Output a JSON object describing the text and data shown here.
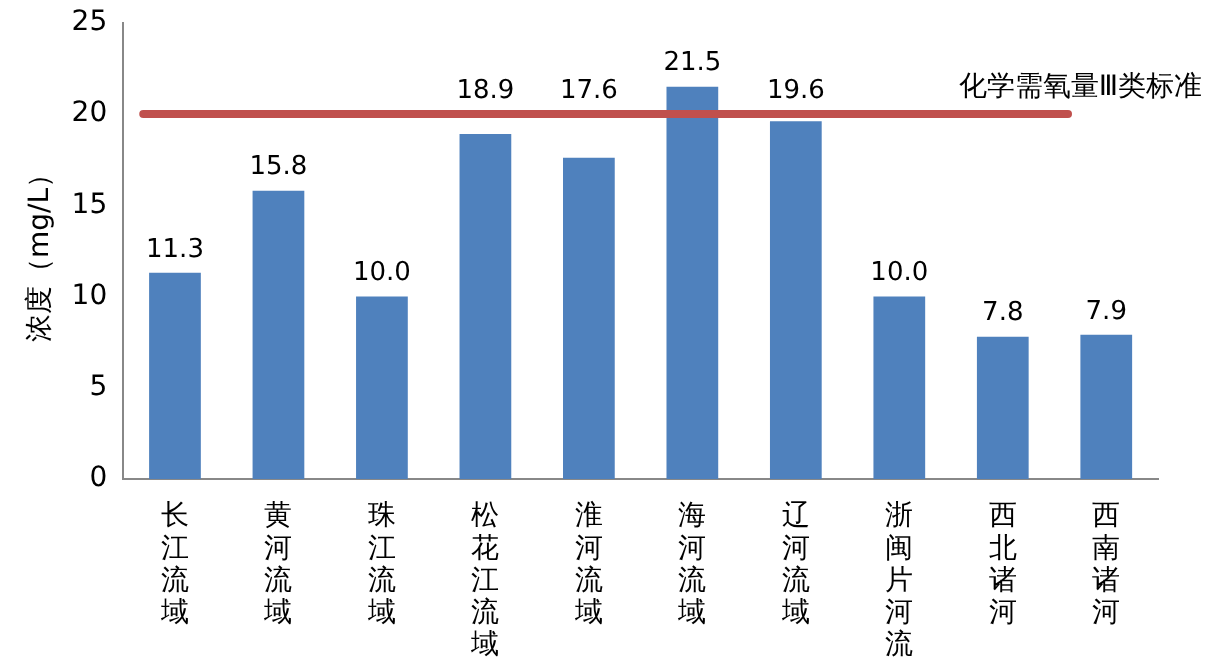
{
  "chart_data": {
    "type": "bar",
    "ylabel": "浓度（mg/L）",
    "categories": [
      "长江流域",
      "黄河流域",
      "珠江流域",
      "松花江流域",
      "淮河流域",
      "海河流域",
      "辽河流域",
      "浙闽片河流",
      "西北诸河",
      "西南诸河"
    ],
    "values": [
      11.3,
      15.8,
      10.0,
      18.9,
      17.6,
      21.5,
      19.6,
      10.0,
      7.8,
      7.9
    ],
    "value_labels": [
      "11.3",
      "15.8",
      "10.0",
      "18.9",
      "17.6",
      "21.5",
      "19.6",
      "10.0",
      "7.8",
      "7.9"
    ],
    "color": "#4f81bd",
    "ylim": [
      0,
      25
    ],
    "yticks": [
      0,
      5,
      10,
      15,
      20,
      25
    ],
    "grid": false,
    "legend": false,
    "ref_lines": [
      {
        "axis": "y",
        "value": 20,
        "label": "化学需氧量Ⅲ类标准",
        "color": "#c0504d"
      }
    ]
  }
}
